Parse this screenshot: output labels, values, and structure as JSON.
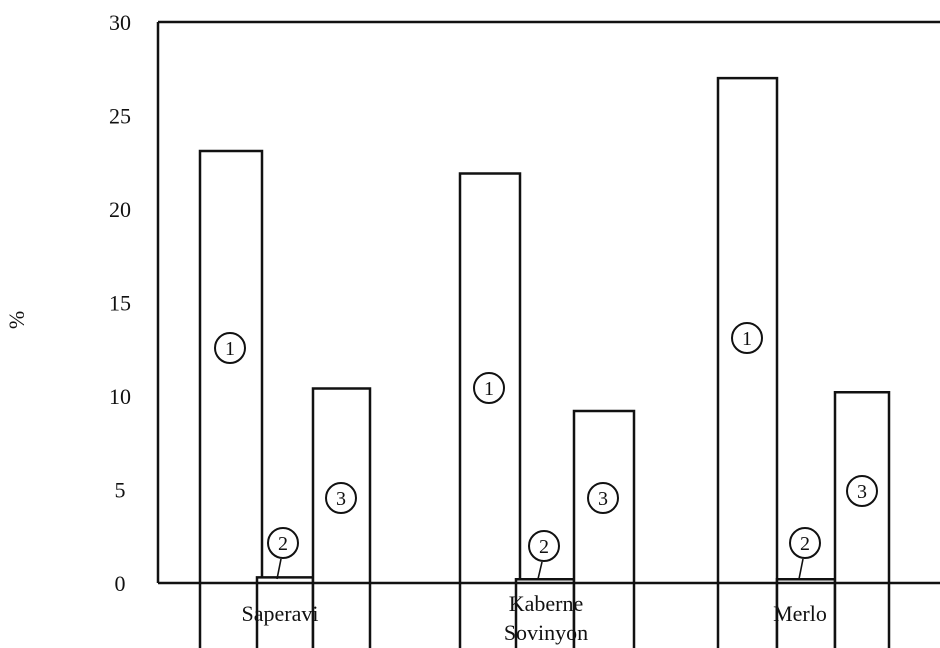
{
  "chart_data": {
    "type": "bar",
    "title": "",
    "xlabel": "",
    "ylabel": "%",
    "ylim": [
      0,
      30
    ],
    "yticks": [
      0,
      5,
      10,
      15,
      20,
      25,
      30
    ],
    "grid": false,
    "legend": "none",
    "categories": [
      "Saperavi",
      "Kaberne Sovinyon",
      "Merlo"
    ],
    "series": [
      {
        "marker": "1",
        "values": [
          23.1,
          21.9,
          27.0
        ]
      },
      {
        "marker": "2",
        "values": [
          0.3,
          0.2,
          0.2
        ]
      },
      {
        "marker": "3",
        "values": [
          10.4,
          9.2,
          10.2
        ]
      }
    ]
  }
}
